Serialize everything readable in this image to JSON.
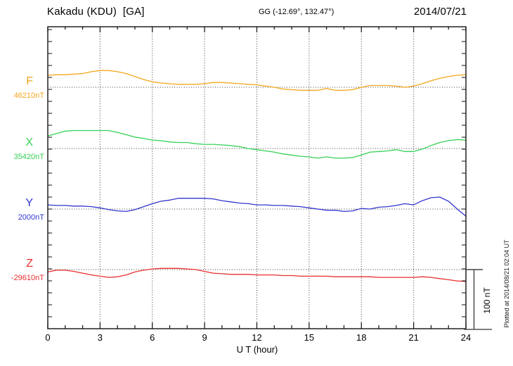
{
  "header": {
    "title": "Kakadu (KDU)  [GA]",
    "location": "GG (-12.69°, 132.47°)",
    "date": "2014/07/21"
  },
  "scale_bar": {
    "label": "100 nT",
    "span_nT": 100
  },
  "watermark": "Plotted at 2014/08/21 02:04 UT",
  "chart_data": {
    "type": "line",
    "title": "Kakadu (KDU) [GA] magnetogram 2014/07/21",
    "xlabel": "U T (hour)",
    "x_range": [
      0,
      24
    ],
    "x_tick_labels": [
      "0",
      "3",
      "6",
      "9",
      "12",
      "15",
      "18",
      "21",
      "24"
    ],
    "x_ticks_major_hours": [
      0,
      3,
      6,
      9,
      12,
      15,
      18,
      21,
      24
    ],
    "x_minor_step_hours": 1,
    "grid_hours": [
      3,
      6,
      9,
      12,
      15,
      18,
      21
    ],
    "y_tick_step_nT": 20,
    "grid": "dotted vertical at 3h intervals, dotted horizontal at each trace baseline",
    "legend_position": "left margin, one colored label per trace",
    "sample_step_hours": 0.5,
    "series": [
      {
        "name": "F",
        "baseline_label": "46210nT",
        "baseline_value_nT": 46210,
        "color": "#f2a71c",
        "offsets_nT": [
          20,
          21,
          21,
          22,
          23,
          26,
          28,
          28,
          26,
          23,
          18,
          13,
          9,
          7,
          6,
          5,
          5,
          5,
          6,
          8,
          8,
          7,
          6,
          5,
          4,
          2,
          0,
          -3,
          -4,
          -5,
          -5,
          -5,
          -2,
          -5,
          -5,
          -4,
          0,
          3,
          3,
          3,
          2,
          0,
          2,
          6,
          11,
          15,
          18,
          20,
          21
        ]
      },
      {
        "name": "X",
        "baseline_label": "35420nT",
        "baseline_value_nT": 35420,
        "color": "#35d156",
        "offsets_nT": [
          21,
          25,
          29,
          30,
          30,
          30,
          30,
          30,
          27,
          23,
          19,
          17,
          14,
          13,
          11,
          10,
          10,
          8,
          7,
          7,
          6,
          5,
          3,
          0,
          -2,
          -4,
          -6,
          -9,
          -11,
          -13,
          -14,
          -16,
          -14,
          -16,
          -16,
          -15,
          -11,
          -6,
          -5,
          -4,
          -2,
          -5,
          -5,
          -1,
          5,
          10,
          13,
          15,
          14
        ]
      },
      {
        "name": "Y",
        "baseline_label": "2000nT",
        "baseline_value_nT": 2000,
        "color": "#3236cf",
        "offsets_nT": [
          7,
          6,
          6,
          5,
          5,
          4,
          2,
          -1,
          -3,
          -4,
          -1,
          4,
          9,
          13,
          15,
          18,
          18,
          18,
          18,
          17,
          14,
          12,
          10,
          9,
          7,
          7,
          6,
          6,
          5,
          4,
          2,
          0,
          -2,
          -2,
          -4,
          -3,
          1,
          0,
          3,
          4,
          6,
          9,
          7,
          14,
          19,
          20,
          13,
          0,
          -12
        ]
      },
      {
        "name": "Z",
        "baseline_label": "-29610nT",
        "baseline_value_nT": -29610,
        "color": "#ea2f2f",
        "offsets_nT": [
          -4,
          -1,
          -1,
          -3,
          -6,
          -9,
          -11,
          -13,
          -12,
          -9,
          -4,
          -1,
          1,
          2,
          2,
          2,
          1,
          0,
          -3,
          -6,
          -7,
          -8,
          -8,
          -8,
          -9,
          -9,
          -9,
          -10,
          -10,
          -11,
          -11,
          -11,
          -11,
          -12,
          -12,
          -12,
          -12,
          -12,
          -13,
          -13,
          -13,
          -13,
          -13,
          -12,
          -13,
          -15,
          -17,
          -19,
          -20
        ]
      }
    ]
  }
}
